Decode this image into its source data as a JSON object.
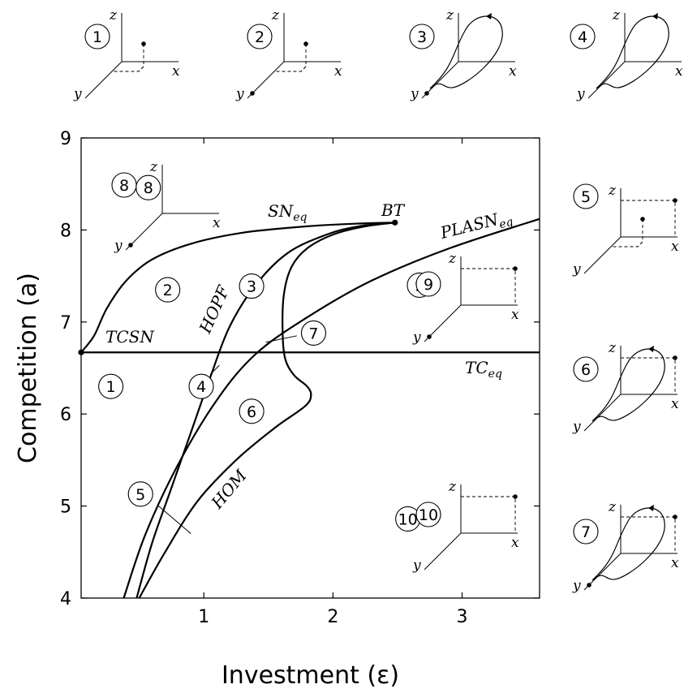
{
  "chart_data": {
    "type": "line",
    "xlabel": "Investment (ε)",
    "ylabel": "Competition (a)",
    "xlim": [
      0.05,
      3.6
    ],
    "ylim": [
      4,
      9
    ],
    "xticks": [
      1,
      2,
      3
    ],
    "yticks": [
      4,
      5,
      6,
      7,
      8,
      9
    ],
    "grid": false,
    "series": [
      {
        "name": "TC_eq",
        "points": [
          [
            0.05,
            6.67
          ],
          [
            3.6,
            6.67
          ]
        ]
      },
      {
        "name": "SN_eq",
        "points": [
          [
            0.05,
            6.67
          ],
          [
            0.15,
            6.85
          ],
          [
            0.25,
            7.15
          ],
          [
            0.4,
            7.45
          ],
          [
            0.6,
            7.68
          ],
          [
            0.9,
            7.85
          ],
          [
            1.3,
            7.97
          ],
          [
            1.8,
            8.04
          ],
          [
            2.2,
            8.07
          ],
          [
            2.48,
            8.08
          ]
        ]
      },
      {
        "name": "HOPF",
        "points": [
          [
            0.48,
            4.0
          ],
          [
            0.6,
            4.6
          ],
          [
            0.75,
            5.2
          ],
          [
            0.9,
            5.8
          ],
          [
            1.05,
            6.4
          ],
          [
            1.2,
            6.95
          ],
          [
            1.4,
            7.4
          ],
          [
            1.65,
            7.75
          ],
          [
            1.95,
            7.95
          ],
          [
            2.2,
            8.04
          ],
          [
            2.48,
            8.08
          ]
        ]
      },
      {
        "name": "HOM",
        "points": [
          [
            0.5,
            4.0
          ],
          [
            0.7,
            4.5
          ],
          [
            0.95,
            5.05
          ],
          [
            1.25,
            5.5
          ],
          [
            1.55,
            5.85
          ],
          [
            1.78,
            6.08
          ],
          [
            1.83,
            6.2
          ],
          [
            1.8,
            6.3
          ],
          [
            1.7,
            6.42
          ],
          [
            1.63,
            6.6
          ],
          [
            1.61,
            6.9
          ],
          [
            1.62,
            7.3
          ],
          [
            1.68,
            7.6
          ],
          [
            1.8,
            7.8
          ],
          [
            2.0,
            7.95
          ],
          [
            2.25,
            8.04
          ],
          [
            2.48,
            8.08
          ]
        ]
      },
      {
        "name": "PLASN_eq",
        "points": [
          [
            0.38,
            4.0
          ],
          [
            0.55,
            4.7
          ],
          [
            0.8,
            5.45
          ],
          [
            1.1,
            6.15
          ],
          [
            1.4,
            6.65
          ],
          [
            1.8,
            7.05
          ],
          [
            2.3,
            7.45
          ],
          [
            2.9,
            7.8
          ],
          [
            3.6,
            8.12
          ]
        ]
      }
    ],
    "curve_labels": {
      "sn": "SN",
      "sn_sub": "eq",
      "bt": "BT",
      "plasn": "PLASN",
      "plasn_sub": "eq",
      "hopf": "HOPF",
      "tcsn": "TCSN",
      "tc": "TC",
      "tc_sub": "eq",
      "hom": "HOM"
    },
    "points": [
      {
        "name": "TCSN",
        "x": 0.05,
        "y": 6.67
      },
      {
        "name": "BT",
        "x": 2.48,
        "y": 8.08
      }
    ],
    "regions": [
      {
        "label": "1",
        "x": 0.28,
        "y": 6.3
      },
      {
        "label": "2",
        "x": 0.72,
        "y": 7.35
      },
      {
        "label": "3",
        "x": 1.37,
        "y": 7.39
      },
      {
        "label": "4",
        "x": 0.98,
        "y": 6.3
      },
      {
        "label": "5",
        "x": 0.51,
        "y": 5.13
      },
      {
        "label": "6",
        "x": 1.37,
        "y": 6.03
      },
      {
        "label": "7",
        "x": 1.85,
        "y": 6.88
      },
      {
        "label": "8",
        "x": 0.57,
        "y": 8.46
      },
      {
        "label": "9",
        "x": 2.67,
        "y": 7.4
      },
      {
        "label": "10",
        "x": 2.58,
        "y": 4.86
      }
    ],
    "region_pointers": [
      {
        "label": "4",
        "from": [
          1.12,
          6.53
        ],
        "to": [
          1.05,
          6.43
        ]
      },
      {
        "label": "5",
        "from": [
          0.9,
          4.7
        ],
        "to": [
          0.65,
          5.0
        ]
      },
      {
        "label": "7",
        "from": [
          1.48,
          6.78
        ],
        "to": [
          1.72,
          6.85
        ]
      }
    ],
    "insets": [
      {
        "label": "1",
        "kind": "point"
      },
      {
        "label": "2",
        "kind": "point-origin"
      },
      {
        "label": "3",
        "kind": "orbit-origin"
      },
      {
        "label": "4",
        "kind": "orbit"
      },
      {
        "label": "5",
        "kind": "two-points"
      },
      {
        "label": "6",
        "kind": "point-orbit"
      },
      {
        "label": "7",
        "kind": "point-orbit-origin"
      },
      {
        "label": "8",
        "kind": "origin"
      },
      {
        "label": "9",
        "kind": "corner-point-origin"
      },
      {
        "label": "10",
        "kind": "corner-point"
      }
    ],
    "axis_letters": {
      "x": "x",
      "y": "y",
      "z": "z"
    }
  }
}
